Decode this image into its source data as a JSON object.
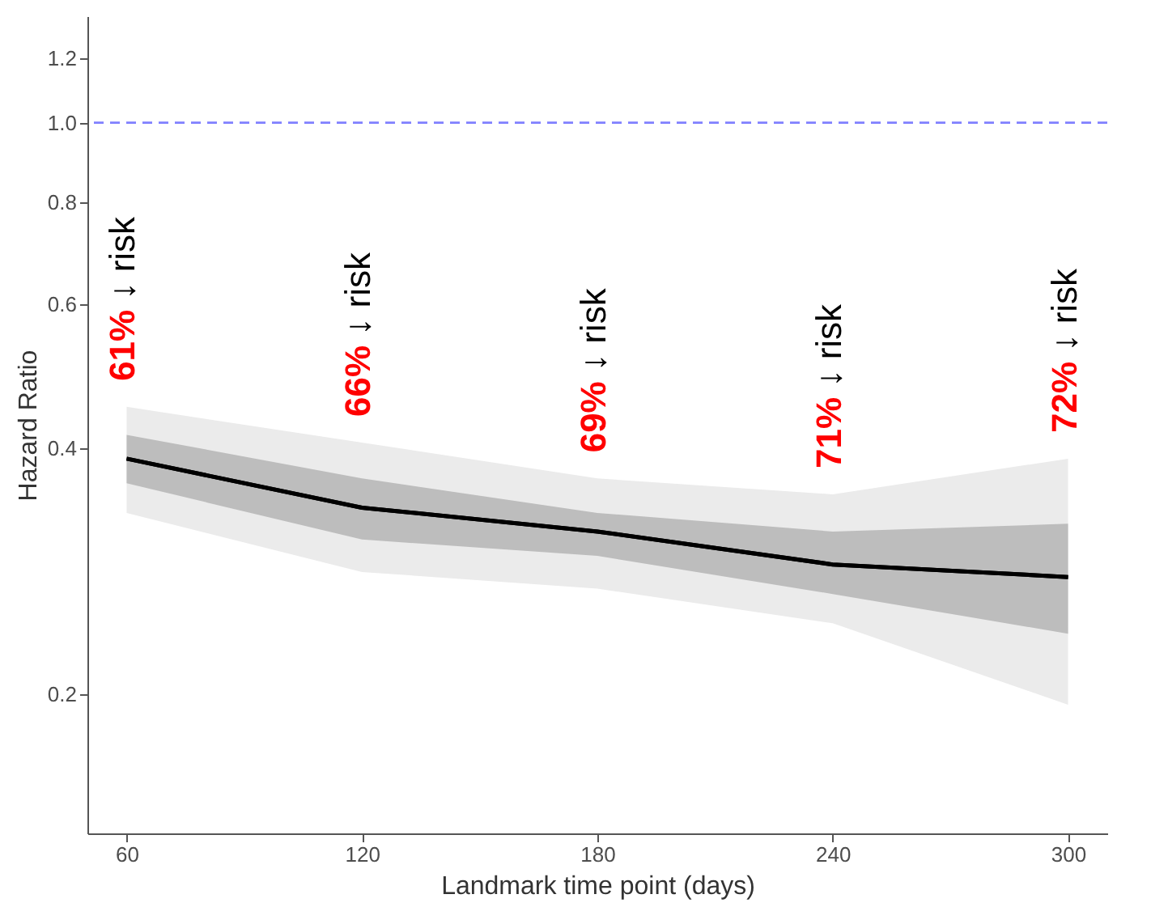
{
  "chart_data": {
    "type": "line",
    "xlabel": "Landmark time point (days)",
    "ylabel": "Hazard Ratio",
    "x": [
      60,
      120,
      180,
      240,
      300
    ],
    "series": [
      {
        "color": "#000000",
        "values": [
          0.388,
          0.338,
          0.316,
          0.288,
          0.278
        ],
        "lower": [
          0.333,
          0.282,
          0.269,
          0.244,
          0.194
        ],
        "upper": [
          0.449,
          0.406,
          0.367,
          0.351,
          0.388
        ]
      },
      {
        "color": "#000000",
        "values": [
          0.388,
          0.338,
          0.316,
          0.288,
          0.278
        ],
        "lower": [
          0.362,
          0.309,
          0.295,
          0.265,
          0.237
        ],
        "upper": [
          0.415,
          0.367,
          0.333,
          0.316,
          0.323
        ]
      }
    ],
    "xlim": [
      50,
      310
    ],
    "xticks": [
      60,
      120,
      180,
      240,
      300
    ],
    "ylim": [
      0.135,
      1.35
    ],
    "yticks": [
      0.2,
      0.4,
      0.6,
      0.8,
      {
        "value": 1.0,
        "label": "1.0"
      },
      1.2
    ],
    "log": "y",
    "ref_lines": [
      {
        "axis": "y",
        "value": 1.0,
        "color": "#8080ff",
        "line_style": "dashed"
      }
    ],
    "annotations": [
      "61% ↓ risk",
      "66% ↓ risk",
      "69% ↓ risk",
      "71% ↓ risk",
      "72% ↓ risk"
    ]
  }
}
